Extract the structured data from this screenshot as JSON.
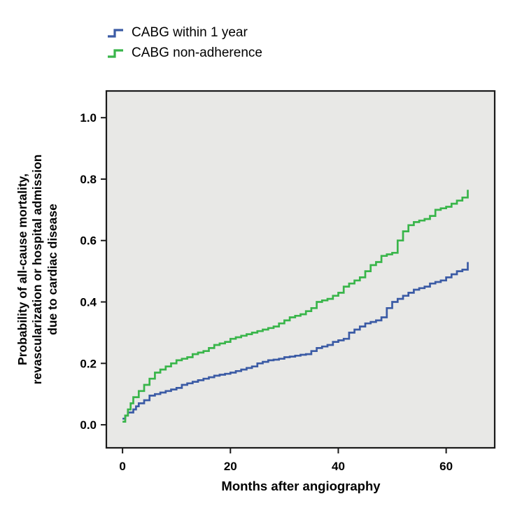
{
  "legend": {
    "items": [
      {
        "label": "CABG within 1 year",
        "color": "#3b5ba5"
      },
      {
        "label": "CABG non-adherence",
        "color": "#39b54a"
      }
    ]
  },
  "chart_data": {
    "type": "line",
    "subtype": "step",
    "title": "",
    "xlabel": "Months after angiography",
    "ylabel": "Probability of all-cause mortality, revascularization or hospital admission due to cardiac disease",
    "ylabel_lines": [
      "Probability of all-cause mortality,",
      "revascularization or hospital admission",
      "due to cardiac disease"
    ],
    "xlim": [
      -3,
      69
    ],
    "ylim": [
      -0.075,
      1.087
    ],
    "xticks": [
      0,
      20,
      40,
      60
    ],
    "xtick_labels": [
      "0",
      "20",
      "40",
      "60"
    ],
    "yticks": [
      0.0,
      0.2,
      0.4,
      0.6,
      0.8,
      1.0
    ],
    "ytick_labels": [
      "0.0",
      "0.2",
      "0.4",
      "0.6",
      "0.8",
      "1.0"
    ],
    "plot_bg": "#e8e8e6",
    "grid": false,
    "legend_position": "top-left",
    "series": [
      {
        "name": "CABG within 1 year",
        "color": "#3b5ba5",
        "points": [
          [
            0,
            0.02
          ],
          [
            0.5,
            0.03
          ],
          [
            1,
            0.04
          ],
          [
            2,
            0.05
          ],
          [
            2.5,
            0.06
          ],
          [
            3,
            0.07
          ],
          [
            4,
            0.08
          ],
          [
            5,
            0.095
          ],
          [
            6,
            0.1
          ],
          [
            7,
            0.105
          ],
          [
            8,
            0.11
          ],
          [
            9,
            0.115
          ],
          [
            10,
            0.12
          ],
          [
            11,
            0.13
          ],
          [
            12,
            0.135
          ],
          [
            13,
            0.14
          ],
          [
            14,
            0.145
          ],
          [
            15,
            0.15
          ],
          [
            16,
            0.155
          ],
          [
            17,
            0.16
          ],
          [
            18,
            0.163
          ],
          [
            19,
            0.166
          ],
          [
            20,
            0.17
          ],
          [
            21,
            0.175
          ],
          [
            22,
            0.18
          ],
          [
            23,
            0.185
          ],
          [
            24,
            0.19
          ],
          [
            25,
            0.2
          ],
          [
            26,
            0.205
          ],
          [
            27,
            0.21
          ],
          [
            28,
            0.212
          ],
          [
            29,
            0.215
          ],
          [
            30,
            0.22
          ],
          [
            31,
            0.222
          ],
          [
            32,
            0.225
          ],
          [
            33,
            0.228
          ],
          [
            34,
            0.23
          ],
          [
            35,
            0.24
          ],
          [
            36,
            0.25
          ],
          [
            37,
            0.255
          ],
          [
            38,
            0.26
          ],
          [
            39,
            0.27
          ],
          [
            40,
            0.275
          ],
          [
            41,
            0.28
          ],
          [
            42,
            0.3
          ],
          [
            43,
            0.31
          ],
          [
            44,
            0.32
          ],
          [
            45,
            0.33
          ],
          [
            46,
            0.335
          ],
          [
            47,
            0.34
          ],
          [
            48,
            0.35
          ],
          [
            49,
            0.38
          ],
          [
            50,
            0.4
          ],
          [
            51,
            0.41
          ],
          [
            52,
            0.42
          ],
          [
            53,
            0.43
          ],
          [
            54,
            0.44
          ],
          [
            55,
            0.445
          ],
          [
            56,
            0.45
          ],
          [
            57,
            0.46
          ],
          [
            58,
            0.465
          ],
          [
            59,
            0.47
          ],
          [
            60,
            0.48
          ],
          [
            61,
            0.49
          ],
          [
            62,
            0.5
          ],
          [
            63,
            0.505
          ],
          [
            64,
            0.53
          ]
        ]
      },
      {
        "name": "CABG non-adherence",
        "color": "#39b54a",
        "points": [
          [
            0,
            0.01
          ],
          [
            0.5,
            0.03
          ],
          [
            1,
            0.05
          ],
          [
            1.5,
            0.07
          ],
          [
            2,
            0.09
          ],
          [
            3,
            0.11
          ],
          [
            4,
            0.13
          ],
          [
            5,
            0.15
          ],
          [
            6,
            0.17
          ],
          [
            7,
            0.18
          ],
          [
            8,
            0.19
          ],
          [
            9,
            0.2
          ],
          [
            10,
            0.21
          ],
          [
            11,
            0.215
          ],
          [
            12,
            0.22
          ],
          [
            13,
            0.23
          ],
          [
            14,
            0.235
          ],
          [
            15,
            0.24
          ],
          [
            16,
            0.25
          ],
          [
            17,
            0.26
          ],
          [
            18,
            0.265
          ],
          [
            19,
            0.27
          ],
          [
            20,
            0.28
          ],
          [
            21,
            0.285
          ],
          [
            22,
            0.29
          ],
          [
            23,
            0.295
          ],
          [
            24,
            0.3
          ],
          [
            25,
            0.305
          ],
          [
            26,
            0.31
          ],
          [
            27,
            0.315
          ],
          [
            28,
            0.32
          ],
          [
            29,
            0.33
          ],
          [
            30,
            0.34
          ],
          [
            31,
            0.35
          ],
          [
            32,
            0.355
          ],
          [
            33,
            0.36
          ],
          [
            34,
            0.37
          ],
          [
            35,
            0.38
          ],
          [
            36,
            0.4
          ],
          [
            37,
            0.405
          ],
          [
            38,
            0.41
          ],
          [
            39,
            0.42
          ],
          [
            40,
            0.43
          ],
          [
            41,
            0.45
          ],
          [
            42,
            0.46
          ],
          [
            43,
            0.47
          ],
          [
            44,
            0.48
          ],
          [
            45,
            0.5
          ],
          [
            46,
            0.52
          ],
          [
            47,
            0.53
          ],
          [
            48,
            0.55
          ],
          [
            49,
            0.555
          ],
          [
            50,
            0.56
          ],
          [
            51,
            0.6
          ],
          [
            52,
            0.63
          ],
          [
            53,
            0.65
          ],
          [
            54,
            0.66
          ],
          [
            55,
            0.665
          ],
          [
            56,
            0.67
          ],
          [
            57,
            0.68
          ],
          [
            58,
            0.7
          ],
          [
            59,
            0.705
          ],
          [
            60,
            0.71
          ],
          [
            61,
            0.72
          ],
          [
            62,
            0.73
          ],
          [
            63,
            0.74
          ],
          [
            64,
            0.765
          ]
        ]
      }
    ]
  }
}
